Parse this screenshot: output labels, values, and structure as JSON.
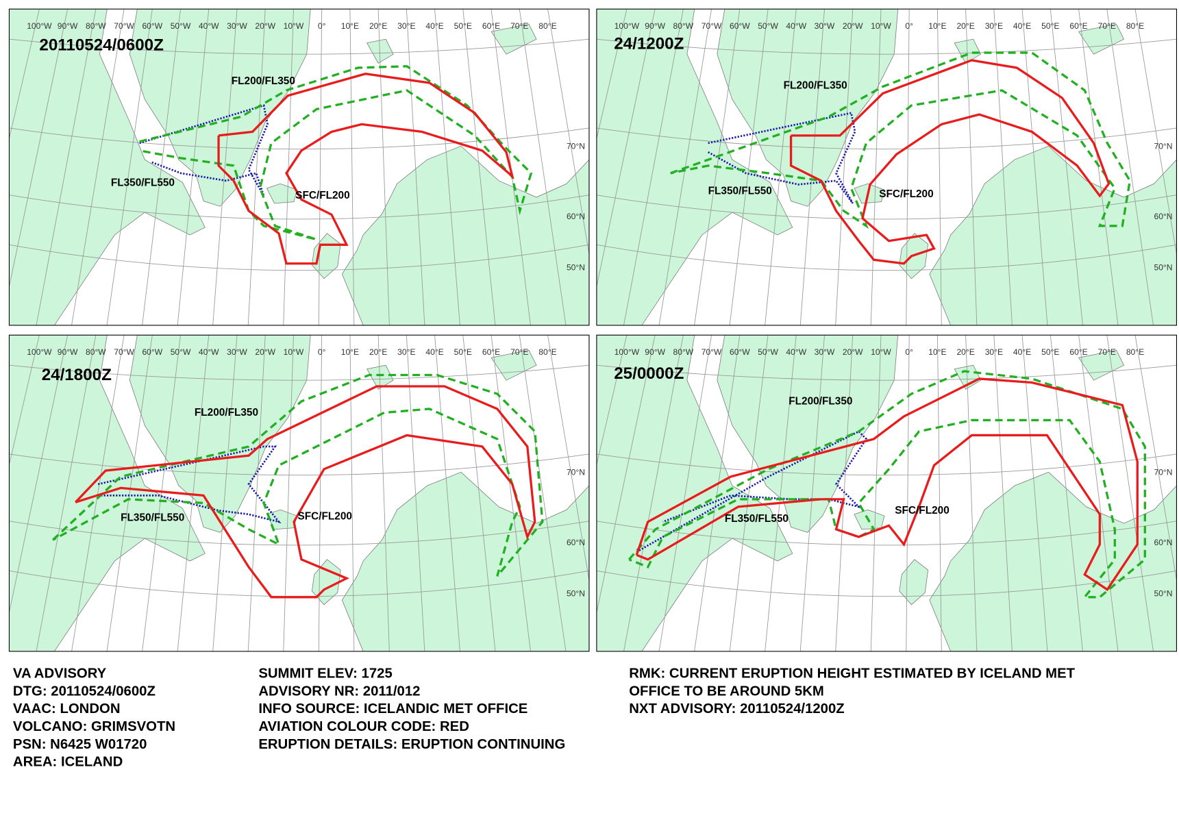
{
  "panels": [
    {
      "time": "20110524/0600Z",
      "upper": "FL200/FL350",
      "top": "FL350/FL550",
      "lower": "SFC/FL200"
    },
    {
      "time": "24/1200Z",
      "upper": "FL200/FL350",
      "top": "FL350/FL550",
      "lower": "SFC/FL200"
    },
    {
      "time": "24/1800Z",
      "upper": "FL200/FL350",
      "top": "FL350/FL550",
      "lower": "SFC/FL200"
    },
    {
      "time": "25/0000Z",
      "upper": "FL200/FL350",
      "top": "FL350/FL550",
      "lower": "SFC/FL200"
    }
  ],
  "longitudes": [
    "100°W",
    "90°W",
    "80°W",
    "70°W",
    "60°W",
    "50°W",
    "40°W",
    "30°W",
    "20°W",
    "10°W",
    "0°",
    "10°E",
    "20°E",
    "30°E",
    "40°E",
    "50°E",
    "60°E",
    "70°E",
    "80°E"
  ],
  "latitudes": [
    "70°N",
    "60°N",
    "50°N"
  ],
  "advisory": {
    "left": [
      "VA ADVISORY",
      "DTG:  20110524/0600Z",
      "VAAC:  LONDON",
      "VOLCANO:  GRIMSVOTN",
      "PSN:  N6425 W01720",
      "AREA:  ICELAND"
    ],
    "middle": [
      "SUMMIT ELEV:  1725",
      "ADVISORY NR:  2011/012",
      "INFO SOURCE:  ICELANDIC MET OFFICE",
      "AVIATION COLOUR CODE:  RED",
      "ERUPTION DETAILS:  ERUPTION CONTINUING"
    ],
    "right": [
      "RMK:  CURRENT ERUPTION HEIGHT ESTIMATED BY ICELAND MET",
      "OFFICE TO BE AROUND 5KM",
      "NXT ADVISORY:  20110524/1200Z"
    ]
  }
}
